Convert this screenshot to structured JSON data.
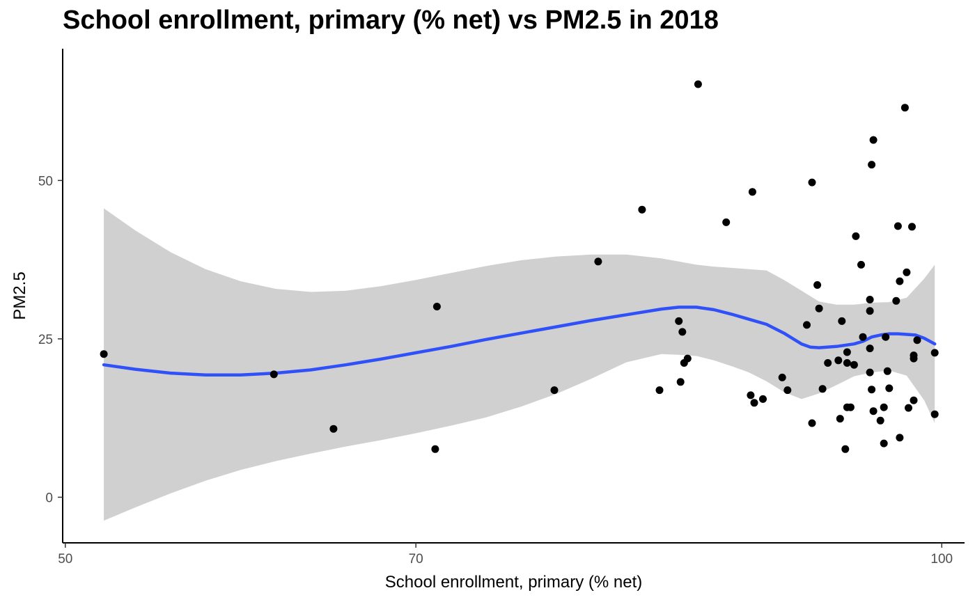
{
  "chart_data": {
    "type": "scatter",
    "title": "School enrollment, primary (% net) vs PM2.5 in 2018",
    "xlabel": "School enrollment, primary (% net)",
    "ylabel": "PM2.5",
    "xlim": [
      49.85,
      101.3
    ],
    "ylim": [
      -7.2,
      70.8
    ],
    "x_ticks": [
      50,
      70,
      100
    ],
    "y_ticks": [
      0,
      25,
      50
    ],
    "grid": false,
    "legend": "none",
    "colors": {
      "points": "#000000",
      "smooth_line": "#3050f8",
      "confidence_band": "#d0d0d0",
      "axis": "#000000"
    },
    "points": [
      {
        "x": 52.2,
        "y": 22.6
      },
      {
        "x": 61.9,
        "y": 19.4
      },
      {
        "x": 65.3,
        "y": 10.8
      },
      {
        "x": 71.2,
        "y": 30.1
      },
      {
        "x": 71.1,
        "y": 7.6
      },
      {
        "x": 77.9,
        "y": 16.9
      },
      {
        "x": 80.4,
        "y": 37.2
      },
      {
        "x": 82.9,
        "y": 45.4
      },
      {
        "x": 83.9,
        "y": 16.9
      },
      {
        "x": 85.0,
        "y": 27.8
      },
      {
        "x": 85.1,
        "y": 18.2
      },
      {
        "x": 85.2,
        "y": 26.1
      },
      {
        "x": 85.3,
        "y": 21.2
      },
      {
        "x": 85.5,
        "y": 21.9
      },
      {
        "x": 86.1,
        "y": 65.2
      },
      {
        "x": 87.7,
        "y": 43.4
      },
      {
        "x": 89.1,
        "y": 16.1
      },
      {
        "x": 89.3,
        "y": 14.9
      },
      {
        "x": 89.2,
        "y": 48.2
      },
      {
        "x": 89.8,
        "y": 15.5
      },
      {
        "x": 90.9,
        "y": 18.9
      },
      {
        "x": 91.2,
        "y": 16.9
      },
      {
        "x": 92.3,
        "y": 27.2
      },
      {
        "x": 92.6,
        "y": 49.7
      },
      {
        "x": 92.6,
        "y": 11.7
      },
      {
        "x": 93.0,
        "y": 29.8
      },
      {
        "x": 92.9,
        "y": 33.5
      },
      {
        "x": 93.2,
        "y": 17.1
      },
      {
        "x": 93.5,
        "y": 21.2
      },
      {
        "x": 94.1,
        "y": 21.6
      },
      {
        "x": 94.2,
        "y": 12.4
      },
      {
        "x": 94.3,
        "y": 27.8
      },
      {
        "x": 94.6,
        "y": 22.9
      },
      {
        "x": 94.6,
        "y": 21.2
      },
      {
        "x": 94.6,
        "y": 14.2
      },
      {
        "x": 94.8,
        "y": 14.2
      },
      {
        "x": 94.5,
        "y": 7.6
      },
      {
        "x": 95.0,
        "y": 20.9
      },
      {
        "x": 95.1,
        "y": 41.2
      },
      {
        "x": 95.4,
        "y": 36.7
      },
      {
        "x": 95.5,
        "y": 25.3
      },
      {
        "x": 95.9,
        "y": 31.2
      },
      {
        "x": 95.9,
        "y": 29.4
      },
      {
        "x": 95.9,
        "y": 23.5
      },
      {
        "x": 95.9,
        "y": 19.7
      },
      {
        "x": 96.0,
        "y": 17.0
      },
      {
        "x": 96.1,
        "y": 13.6
      },
      {
        "x": 96.1,
        "y": 56.4
      },
      {
        "x": 96.0,
        "y": 52.5
      },
      {
        "x": 96.5,
        "y": 12.1
      },
      {
        "x": 96.7,
        "y": 14.2
      },
      {
        "x": 96.8,
        "y": 25.3
      },
      {
        "x": 96.7,
        "y": 8.5
      },
      {
        "x": 96.9,
        "y": 19.9
      },
      {
        "x": 97.0,
        "y": 17.2
      },
      {
        "x": 97.4,
        "y": 31.0
      },
      {
        "x": 97.5,
        "y": 42.8
      },
      {
        "x": 97.6,
        "y": 34.1
      },
      {
        "x": 97.6,
        "y": 9.4
      },
      {
        "x": 97.9,
        "y": 61.5
      },
      {
        "x": 98.0,
        "y": 35.5
      },
      {
        "x": 98.1,
        "y": 14.1
      },
      {
        "x": 98.3,
        "y": 42.7
      },
      {
        "x": 98.4,
        "y": 22.4
      },
      {
        "x": 98.4,
        "y": 21.9
      },
      {
        "x": 98.4,
        "y": 15.3
      },
      {
        "x": 98.6,
        "y": 24.8
      },
      {
        "x": 99.6,
        "y": 22.8
      },
      {
        "x": 99.6,
        "y": 13.1
      }
    ],
    "smooth_line": [
      {
        "x": 52.2,
        "y": 20.9
      },
      {
        "x": 54,
        "y": 20.2
      },
      {
        "x": 56,
        "y": 19.6
      },
      {
        "x": 58,
        "y": 19.3
      },
      {
        "x": 60,
        "y": 19.3
      },
      {
        "x": 62,
        "y": 19.6
      },
      {
        "x": 64,
        "y": 20.1
      },
      {
        "x": 66,
        "y": 20.9
      },
      {
        "x": 68,
        "y": 21.8
      },
      {
        "x": 70,
        "y": 22.8
      },
      {
        "x": 72,
        "y": 23.8
      },
      {
        "x": 74,
        "y": 24.9
      },
      {
        "x": 76,
        "y": 25.9
      },
      {
        "x": 78,
        "y": 26.9
      },
      {
        "x": 80,
        "y": 27.9
      },
      {
        "x": 82,
        "y": 28.8
      },
      {
        "x": 84,
        "y": 29.7
      },
      {
        "x": 85,
        "y": 30.0
      },
      {
        "x": 86,
        "y": 30.0
      },
      {
        "x": 87,
        "y": 29.6
      },
      {
        "x": 88,
        "y": 28.9
      },
      {
        "x": 89,
        "y": 28.1
      },
      {
        "x": 90,
        "y": 27.3
      },
      {
        "x": 91,
        "y": 25.9
      },
      {
        "x": 92,
        "y": 24.2
      },
      {
        "x": 92.5,
        "y": 23.7
      },
      {
        "x": 93,
        "y": 23.6
      },
      {
        "x": 94,
        "y": 23.8
      },
      {
        "x": 95,
        "y": 24.2
      },
      {
        "x": 95.5,
        "y": 24.6
      },
      {
        "x": 96,
        "y": 25.3
      },
      {
        "x": 96.5,
        "y": 25.6
      },
      {
        "x": 97,
        "y": 25.8
      },
      {
        "x": 97.5,
        "y": 25.8
      },
      {
        "x": 98,
        "y": 25.7
      },
      {
        "x": 98.5,
        "y": 25.6
      },
      {
        "x": 99,
        "y": 25.1
      },
      {
        "x": 99.6,
        "y": 24.2
      }
    ],
    "confidence_band": {
      "x": [
        52.2,
        54,
        56,
        58,
        60,
        62,
        64,
        66,
        68,
        70,
        72,
        74,
        76,
        78,
        80,
        82,
        84,
        85,
        86,
        87,
        88,
        89,
        90,
        91,
        92,
        93,
        94,
        95,
        96,
        97,
        98,
        99,
        99.6
      ],
      "upper": [
        45.6,
        42.1,
        38.7,
        36.0,
        34.1,
        32.9,
        32.4,
        32.6,
        33.3,
        34.3,
        35.4,
        36.5,
        37.4,
        38.0,
        38.3,
        38.3,
        37.7,
        37.2,
        36.7,
        36.4,
        36.2,
        36.0,
        35.8,
        34.3,
        32.6,
        30.9,
        30.4,
        30.4,
        30.7,
        30.8,
        31.5,
        34.5,
        36.7
      ],
      "lower": [
        -3.7,
        -1.6,
        0.6,
        2.6,
        4.3,
        5.7,
        6.9,
        8.0,
        9.0,
        10.1,
        11.3,
        12.6,
        14.3,
        16.3,
        18.7,
        21.3,
        22.6,
        22.5,
        22.3,
        21.6,
        20.7,
        19.7,
        18.3,
        16.6,
        15.5,
        16.4,
        17.7,
        19.1,
        19.7,
        20.0,
        19.2,
        15.3,
        11.7
      ]
    }
  }
}
